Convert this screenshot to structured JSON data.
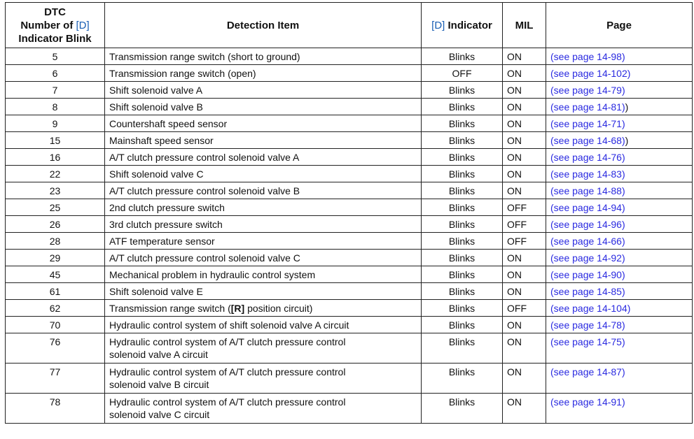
{
  "headers": {
    "dtc_line1": "DTC",
    "dtc_line2_pre": "Number of ",
    "dtc_d": "[D]",
    "dtc_line3": "Indicator Blink",
    "detection": "Detection Item",
    "ind_d": "[D]",
    "ind_post": " Indicator",
    "mil": "MIL",
    "page": "Page"
  },
  "colors": {
    "link": "#2a2ae0",
    "bracket": "#1a5fb4"
  },
  "rows": [
    {
      "dtc": "5",
      "item": "Transmission range switch (short to ground)",
      "ind": "Blinks",
      "mil": "ON",
      "link": "(see page 14-98)",
      "suffix": ""
    },
    {
      "dtc": "6",
      "item": "Transmission range switch (open)",
      "ind": "OFF",
      "mil": "ON",
      "link": "(see page 14-102)",
      "suffix": ""
    },
    {
      "dtc": "7",
      "item": "Shift solenoid valve A",
      "ind": "Blinks",
      "mil": "ON",
      "link": "(see page 14-79)",
      "suffix": ""
    },
    {
      "dtc": "8",
      "item": "Shift solenoid valve B",
      "ind": "Blinks",
      "mil": "ON",
      "link": "(see page 14-81)",
      "suffix": ")"
    },
    {
      "dtc": "9",
      "item": "Countershaft speed sensor",
      "ind": "Blinks",
      "mil": "ON",
      "link": "(see page 14-71)",
      "suffix": ""
    },
    {
      "dtc": "15",
      "item": "Mainshaft speed sensor",
      "ind": "Blinks",
      "mil": "ON",
      "link": "(see page 14-68)",
      "suffix": ")"
    },
    {
      "dtc": "16",
      "item": "A/T clutch pressure control solenoid valve A",
      "ind": "Blinks",
      "mil": "ON",
      "link": "(see page 14-76)",
      "suffix": ""
    },
    {
      "dtc": "22",
      "item": "Shift solenoid valve C",
      "ind": "Blinks",
      "mil": "ON",
      "link": "(see page 14-83)",
      "suffix": ""
    },
    {
      "dtc": "23",
      "item": "A/T clutch pressure control solenoid valve B",
      "ind": "Blinks",
      "mil": "ON",
      "link": "(see page 14-88)",
      "suffix": ""
    },
    {
      "dtc": "25",
      "item": "2nd clutch pressure switch",
      "ind": "Blinks",
      "mil": "OFF",
      "link": "(see page 14-94)",
      "suffix": ""
    },
    {
      "dtc": "26",
      "item": "3rd clutch pressure switch",
      "ind": "Blinks",
      "mil": "OFF",
      "link": "(see page 14-96)",
      "suffix": ""
    },
    {
      "dtc": "28",
      "item": "ATF temperature sensor",
      "ind": "Blinks",
      "mil": "OFF",
      "link": "(see page 14-66)",
      "suffix": ""
    },
    {
      "dtc": "29",
      "item": "A/T clutch pressure control solenoid valve C",
      "ind": "Blinks",
      "mil": "ON",
      "link": "(see page 14-92)",
      "suffix": ""
    },
    {
      "dtc": "45",
      "item": "Mechanical problem in hydraulic control system",
      "ind": "Blinks",
      "mil": "ON",
      "link": "(see page 14-90)",
      "suffix": ""
    },
    {
      "dtc": "61",
      "item": "Shift solenoid valve E",
      "ind": "Blinks",
      "mil": "ON",
      "link": "(see page 14-85)",
      "suffix": ""
    },
    {
      "dtc": "62",
      "item": "Transmission range switch (",
      "item_bold": "[R]",
      "item_post": " position circuit)",
      "ind": "Blinks",
      "mil": "OFF",
      "link": "(see page 14-104)",
      "suffix": ""
    },
    {
      "dtc": "70",
      "item": "Hydraulic control system of shift solenoid valve A circuit",
      "ind": "Blinks",
      "mil": "ON",
      "link": "(see page 14-78)",
      "suffix": ""
    },
    {
      "dtc": "76",
      "item": "Hydraulic control system of A/T clutch pressure control",
      "item2": "solenoid valve A circuit",
      "ind": "Blinks",
      "mil": "ON",
      "link": "(see page 14-75)",
      "suffix": ""
    },
    {
      "dtc": "77",
      "item": "Hydraulic control system of A/T clutch pressure control",
      "item2": "solenoid valve B circuit",
      "ind": "Blinks",
      "mil": "ON",
      "link": "(see page 14-87)",
      "suffix": ""
    },
    {
      "dtc": "78",
      "item": "Hydraulic control system of A/T clutch pressure control",
      "item2": "solenoid valve C circuit",
      "ind": "Blinks",
      "mil": "ON",
      "link": "(see page 14-91)",
      "suffix": ""
    }
  ]
}
